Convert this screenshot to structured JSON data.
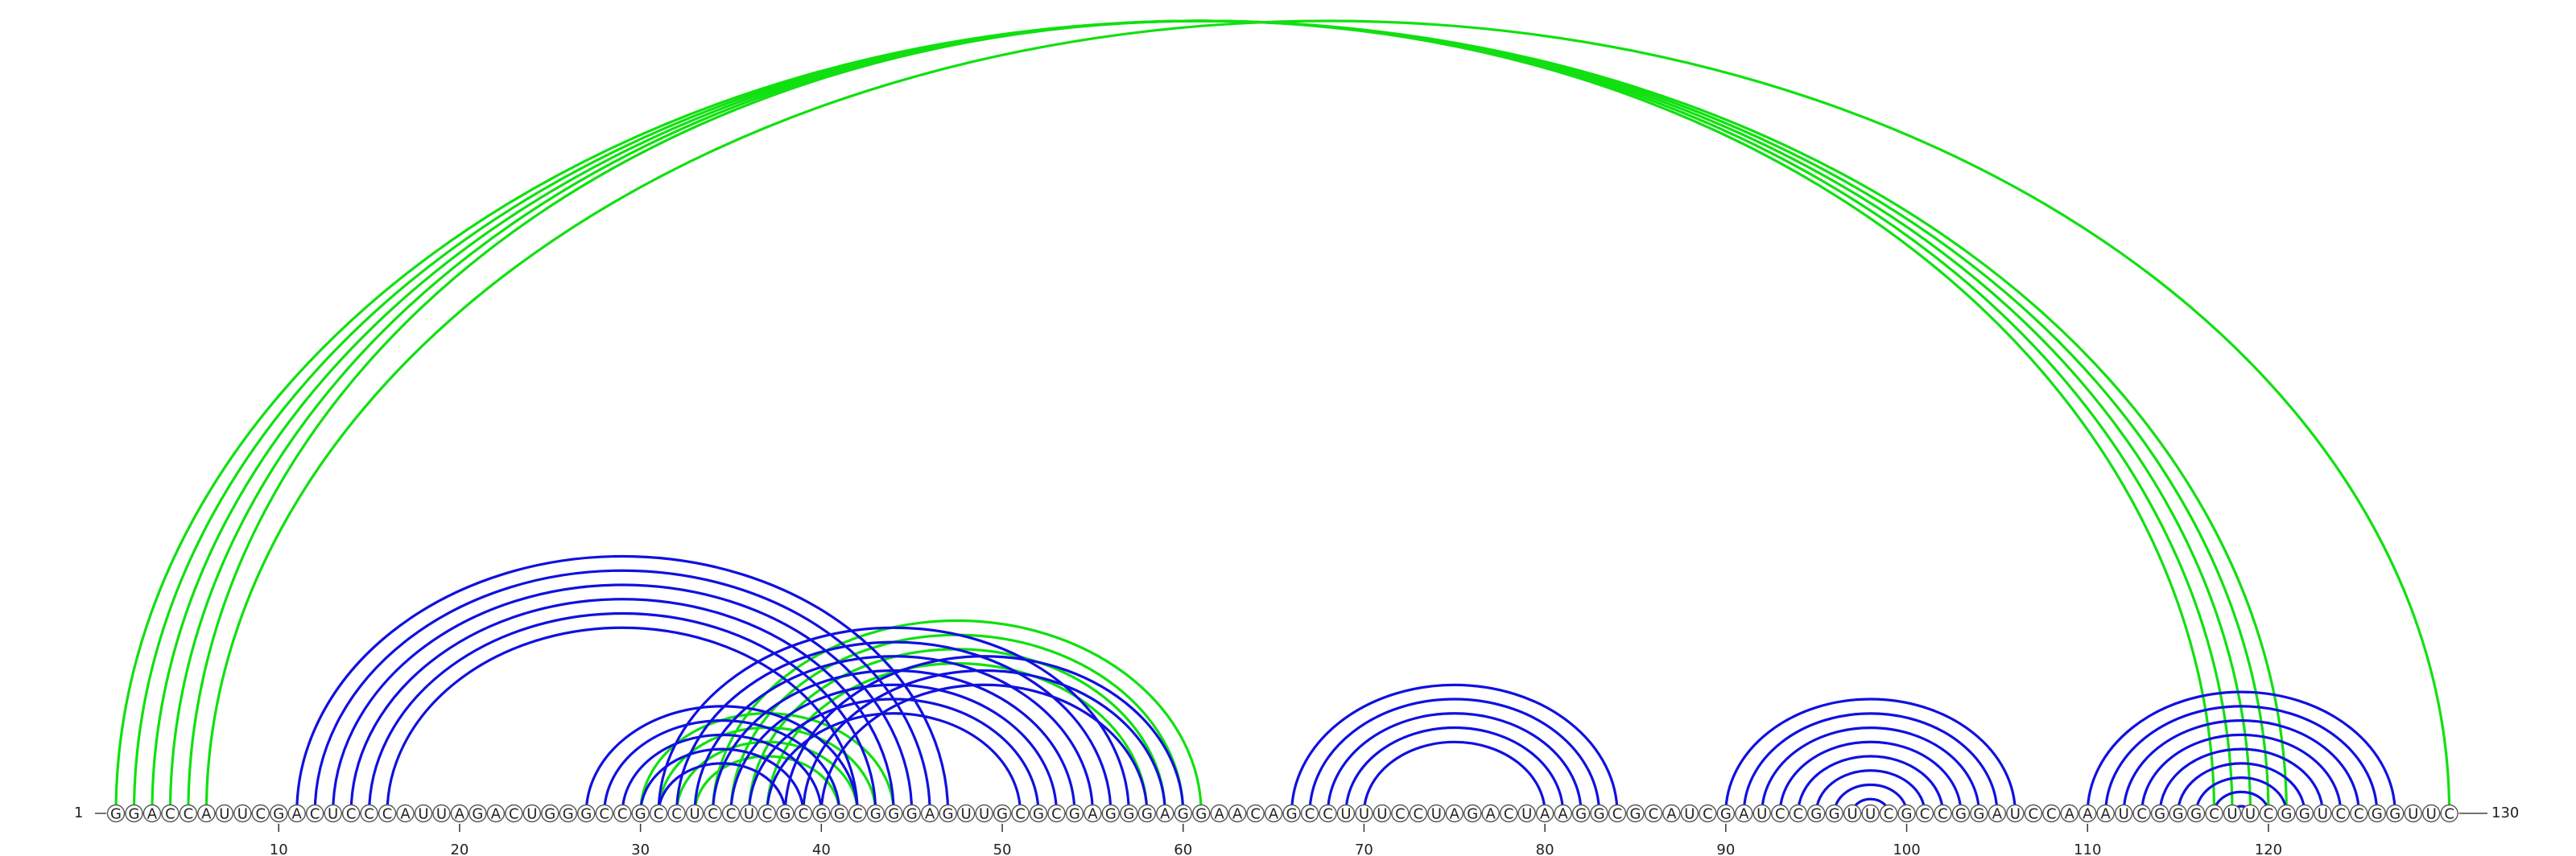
{
  "sequence": "GGACCAUUCGACUCCCAUUAGACUGGGCCGCCUCCUCGCGGCGGGAGUUGCGCGAGGGAGGAACAGCCUUUCCUAGACUAAGGCGCAUCGAUCCGGUUCGCCGGAUCCAAAUCGGGCUUCGGUCCGGUUC",
  "start_label": "1",
  "end_label": "130",
  "tick_labels": [
    "10",
    "20",
    "30",
    "40",
    "50",
    "60",
    "70",
    "80",
    "90",
    "100",
    "110",
    "120"
  ],
  "colors": {
    "primary_pairs": "#1010e0",
    "alternative_pairs": "#10e010",
    "nucleotide_stroke": "#555555"
  },
  "chart_data": {
    "type": "arc-diagram",
    "length": 130,
    "blue_pairs": [
      [
        11,
        47
      ],
      [
        12,
        46
      ],
      [
        13,
        45
      ],
      [
        14,
        44
      ],
      [
        15,
        43
      ],
      [
        16,
        42
      ],
      [
        27,
        42
      ],
      [
        28,
        41
      ],
      [
        29,
        40
      ],
      [
        30,
        39
      ],
      [
        31,
        38
      ],
      [
        31,
        57
      ],
      [
        32,
        56
      ],
      [
        33,
        55
      ],
      [
        34,
        54
      ],
      [
        35,
        53
      ],
      [
        36,
        52
      ],
      [
        37,
        51
      ],
      [
        38,
        60
      ],
      [
        39,
        59
      ],
      [
        40,
        58
      ],
      [
        66,
        84
      ],
      [
        67,
        83
      ],
      [
        68,
        82
      ],
      [
        69,
        81
      ],
      [
        70,
        80
      ],
      [
        90,
        106
      ],
      [
        91,
        105
      ],
      [
        92,
        104
      ],
      [
        93,
        103
      ],
      [
        94,
        102
      ],
      [
        95,
        101
      ],
      [
        96,
        100
      ],
      [
        97,
        99
      ],
      [
        110,
        127
      ],
      [
        111,
        126
      ],
      [
        112,
        125
      ],
      [
        113,
        124
      ],
      [
        114,
        123
      ],
      [
        115,
        122
      ],
      [
        116,
        121
      ],
      [
        117,
        120
      ],
      [
        118,
        119
      ]
    ],
    "green_pairs": [
      [
        1,
        121
      ],
      [
        2,
        120
      ],
      [
        3,
        119
      ],
      [
        4,
        118
      ],
      [
        5,
        117
      ],
      [
        6,
        130
      ],
      [
        30,
        44
      ],
      [
        31,
        43
      ],
      [
        32,
        42
      ],
      [
        33,
        41
      ],
      [
        34,
        61
      ],
      [
        35,
        60
      ],
      [
        36,
        59
      ],
      [
        37,
        58
      ]
    ]
  }
}
